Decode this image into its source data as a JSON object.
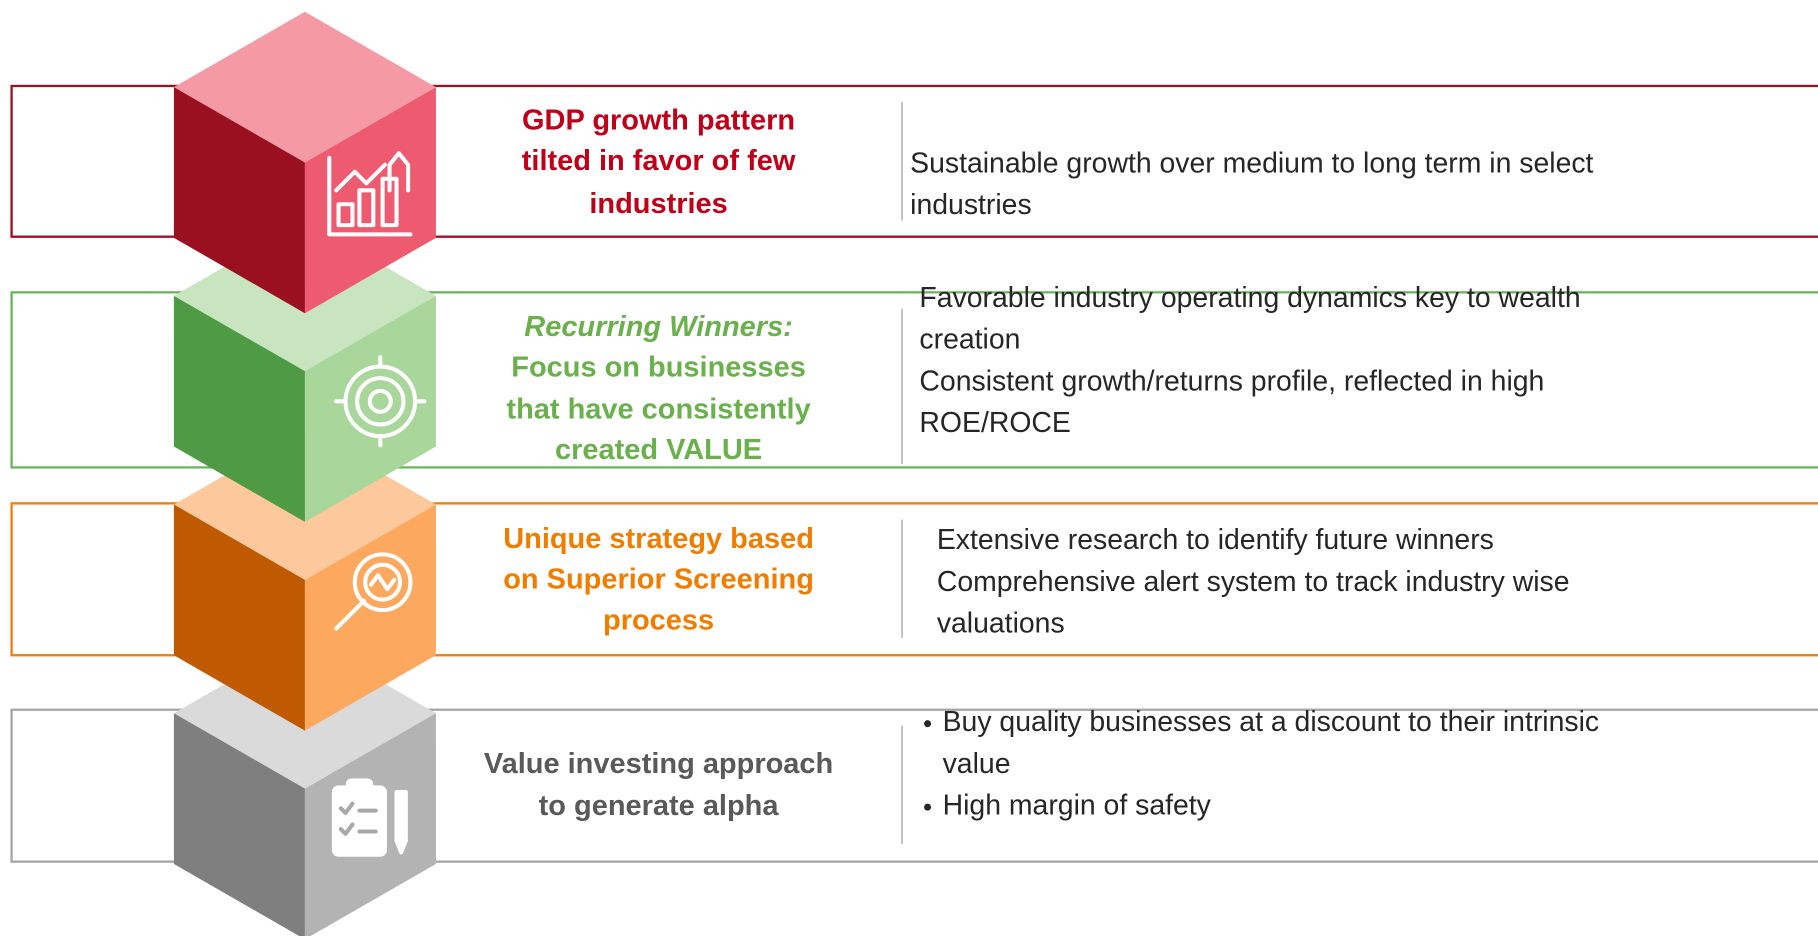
{
  "rows": [
    {
      "title_lines": [
        {
          "text": "GDP growth pattern"
        },
        {
          "text": "tilted in favor of few"
        },
        {
          "text": "industries"
        }
      ],
      "items": [
        [
          "Sustainable growth over medium to long term in select",
          "industries"
        ]
      ]
    },
    {
      "title_lines": [
        {
          "text": "Recurring Winners:",
          "italic": true
        },
        {
          "text": "Focus on businesses"
        },
        {
          "text": "that have consistently"
        },
        {
          "text": "created VALUE"
        }
      ],
      "items": [
        [
          "Favorable industry operating dynamics key to wealth",
          "creation"
        ],
        [
          "Consistent growth/returns profile, reflected in high",
          "ROE/ROCE"
        ]
      ]
    },
    {
      "title_lines": [
        {
          "text": "Unique strategy based"
        },
        {
          "text": "on Superior Screening"
        },
        {
          "text": "process"
        }
      ],
      "items": [
        [
          "Extensive research to identify future winners"
        ],
        [
          "Comprehensive alert system to track industry wise",
          "valuations"
        ]
      ]
    },
    {
      "title_lines": [
        {
          "text": "Value investing approach"
        },
        {
          "text": "to generate alpha"
        }
      ],
      "items": [
        [
          "Buy quality businesses at a discount to their intrinsic",
          "value"
        ],
        [
          "High margin of safety"
        ]
      ],
      "bullets": true
    }
  ]
}
